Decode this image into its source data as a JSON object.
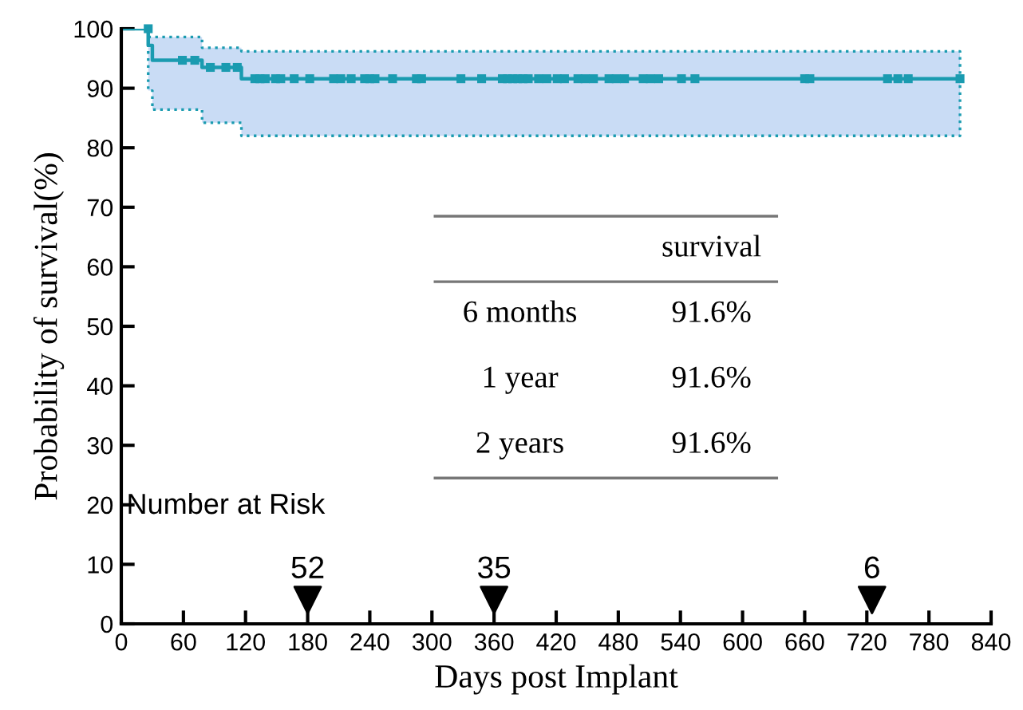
{
  "chart_data": {
    "type": "step",
    "xlabel": "Days post Implant",
    "ylabel": "Probability of survival(%)",
    "xlim": [
      0,
      840
    ],
    "xticks": [
      0,
      60,
      120,
      180,
      240,
      300,
      360,
      420,
      480,
      540,
      600,
      660,
      720,
      780,
      840
    ],
    "ylim": [
      0,
      100
    ],
    "yticks": [
      0,
      10,
      20,
      30,
      40,
      50,
      60,
      70,
      80,
      90,
      100
    ],
    "grid": false,
    "legend": false,
    "series": [
      {
        "color": "#1a9bb0",
        "x": [
          0,
          26,
          30,
          78,
          116,
          810
        ],
        "values": [
          100,
          97.2,
          94.7,
          93.5,
          91.6,
          91.6
        ],
        "lower": [
          100,
          89.6,
          86.4,
          84.2,
          82.0,
          82.0
        ],
        "upper": [
          100,
          98.6,
          98.6,
          96.8,
          96.2,
          96.2
        ]
      },
      {
        "type": "scatter",
        "color": "#1a9bb0",
        "marker": "square",
        "x": [
          26,
          59,
          71,
          86,
          101,
          112,
          129,
          134,
          139,
          149,
          154,
          167,
          182,
          205,
          212,
          222,
          235,
          240,
          245,
          262,
          285,
          290,
          328,
          348,
          368,
          373,
          378,
          383,
          388,
          393,
          403,
          411,
          421,
          428,
          441,
          448,
          456,
          471,
          478,
          486,
          504,
          511,
          519,
          541,
          554,
          660,
          665,
          740,
          750,
          760,
          810
        ],
        "values": [
          100,
          94.7,
          94.7,
          93.5,
          93.5,
          93.5,
          91.6,
          91.6,
          91.6,
          91.6,
          91.6,
          91.6,
          91.6,
          91.6,
          91.6,
          91.6,
          91.6,
          91.6,
          91.6,
          91.6,
          91.6,
          91.6,
          91.6,
          91.6,
          91.6,
          91.6,
          91.6,
          91.6,
          91.6,
          91.6,
          91.6,
          91.6,
          91.6,
          91.6,
          91.6,
          91.6,
          91.6,
          91.6,
          91.6,
          91.6,
          91.6,
          91.6,
          91.6,
          91.6,
          91.6,
          91.6,
          91.6,
          91.6,
          91.6,
          91.6,
          91.6
        ]
      }
    ],
    "annotations": [
      "Number at Risk",
      {
        "text": "52",
        "x": 180,
        "y": 4
      },
      {
        "text": "35",
        "x": 360,
        "y": 4
      },
      {
        "text": "6",
        "x": 725,
        "y": 4
      },
      "survival",
      "6 months",
      "91.6%",
      "1 year",
      "91.6%",
      "2 years",
      "91.6%"
    ]
  }
}
